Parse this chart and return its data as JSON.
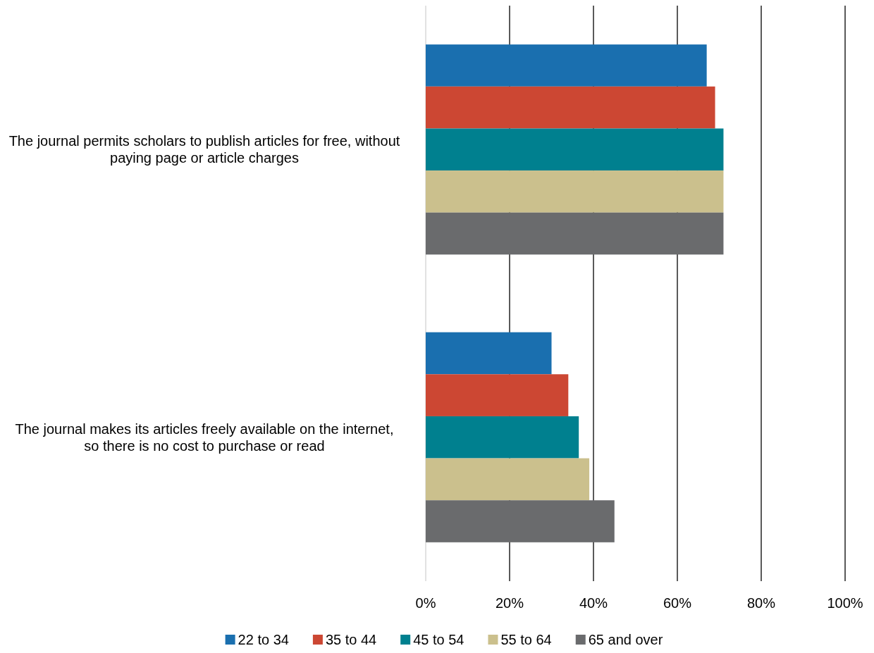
{
  "chart_data": {
    "type": "bar",
    "orientation": "horizontal",
    "categories": [
      "The journal permits scholars to publish articles for free, without paying page or article charges",
      "The journal makes its articles freely available on the internet, so there is no cost to purchase or read"
    ],
    "series": [
      {
        "name": "22 to 34",
        "color": "#1a6faf",
        "values": [
          67,
          30
        ]
      },
      {
        "name": "35 to 44",
        "color": "#cc4733",
        "values": [
          69,
          34
        ]
      },
      {
        "name": "45 to 54",
        "color": "#00808f",
        "values": [
          71,
          36.5
        ]
      },
      {
        "name": "55 to 64",
        "color": "#cbc08d",
        "values": [
          71,
          39
        ]
      },
      {
        "name": "65 and over",
        "color": "#6a6b6d",
        "values": [
          71,
          45
        ]
      }
    ],
    "xlim": [
      0,
      100
    ],
    "xticks": [
      {
        "value": 0,
        "label": "0%"
      },
      {
        "value": 20,
        "label": "20%"
      },
      {
        "value": 40,
        "label": "40%"
      },
      {
        "value": 60,
        "label": "60%"
      },
      {
        "value": 80,
        "label": "80%"
      },
      {
        "value": 100,
        "label": "100%"
      }
    ],
    "grid": "x",
    "legend": "bottom"
  }
}
